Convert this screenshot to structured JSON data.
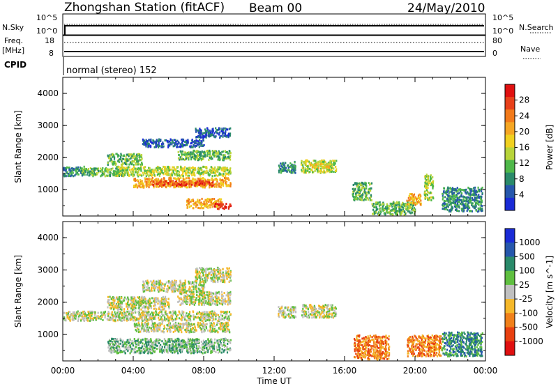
{
  "header": {
    "station": "Zhongshan Station (fitACF)",
    "beam": "Beam 00",
    "date": "24/May/2010"
  },
  "top_panels": {
    "nsky_label": "N.Sky",
    "nsearch_label": "N.Search",
    "left_top_tick": "10^5",
    "left_bottom_tick": "10^0",
    "right_top_tick": "10^5",
    "right_bottom_tick": "10^0",
    "freq_label": "Freq.",
    "freq_unit": "[MHz]",
    "freq_top": "18",
    "freq_bottom": "8",
    "nave_label": "Nave",
    "nave_top": "80",
    "nave_bottom": "0",
    "cpid_label": "CPID",
    "cpid_value": "normal (stereo) 152"
  },
  "chart_data": [
    {
      "type": "heatmap",
      "name": "power",
      "ylabel": "Slant Range [km]",
      "xlabel": "Time UT",
      "xlim": [
        0,
        24
      ],
      "ylim": [
        180,
        4500
      ],
      "x_ticks": [
        "00:00",
        "04:00",
        "08:00",
        "12:00",
        "16:00",
        "20:00",
        "00:00"
      ],
      "y_ticks": [
        1000,
        2000,
        3000,
        4000
      ],
      "colorbar": {
        "label": "Power [dB]",
        "ticks": [
          "4",
          "8",
          "12",
          "16",
          "20",
          "24",
          "28"
        ],
        "colors": [
          "#1a2bd6",
          "#2657ac",
          "#2a8a6a",
          "#4fb84a",
          "#b8d43a",
          "#f0d020",
          "#f5a623",
          "#f27a1a",
          "#e8401a",
          "#e01010"
        ]
      },
      "regions": [
        {
          "x": [
            0.0,
            1.2
          ],
          "y": [
            1450,
            1750
          ],
          "level": 2
        },
        {
          "x": [
            1.0,
            3.5
          ],
          "y": [
            1450,
            1700
          ],
          "level": 3
        },
        {
          "x": [
            2.5,
            4.5
          ],
          "y": [
            1800,
            2150
          ],
          "level": 3
        },
        {
          "x": [
            3.0,
            9.5
          ],
          "y": [
            1450,
            1750
          ],
          "level": 4
        },
        {
          "x": [
            4.0,
            9.5
          ],
          "y": [
            1100,
            1400
          ],
          "level": 6
        },
        {
          "x": [
            5.0,
            8.5
          ],
          "y": [
            1150,
            1300
          ],
          "level": 8
        },
        {
          "x": [
            6.5,
            9.5
          ],
          "y": [
            1950,
            2250
          ],
          "level": 3
        },
        {
          "x": [
            4.5,
            8.0
          ],
          "y": [
            2350,
            2600
          ],
          "level": 1
        },
        {
          "x": [
            7.5,
            9.5
          ],
          "y": [
            2650,
            2950
          ],
          "level": 1
        },
        {
          "x": [
            7.0,
            9.0
          ],
          "y": [
            450,
            750
          ],
          "level": 6
        },
        {
          "x": [
            8.5,
            9.5
          ],
          "y": [
            430,
            600
          ],
          "level": 9
        },
        {
          "x": [
            12.2,
            13.2
          ],
          "y": [
            1550,
            1900
          ],
          "level": 2
        },
        {
          "x": [
            13.5,
            15.5
          ],
          "y": [
            1550,
            1950
          ],
          "level": 4
        },
        {
          "x": [
            14.0,
            15.2
          ],
          "y": [
            1700,
            1850
          ],
          "level": 5
        },
        {
          "x": [
            16.4,
            17.5
          ],
          "y": [
            700,
            1250
          ],
          "level": 3
        },
        {
          "x": [
            17.5,
            20.0
          ],
          "y": [
            250,
            650
          ],
          "level": 3
        },
        {
          "x": [
            19.5,
            20.3
          ],
          "y": [
            550,
            900
          ],
          "level": 6
        },
        {
          "x": [
            20.5,
            21.0
          ],
          "y": [
            700,
            1500
          ],
          "level": 4
        },
        {
          "x": [
            21.5,
            23.8
          ],
          "y": [
            350,
            1100
          ],
          "level": 2
        }
      ]
    },
    {
      "type": "heatmap",
      "name": "velocity",
      "ylabel": "Slant Range [km]",
      "xlabel": "Time UT",
      "xlim": [
        0,
        24
      ],
      "ylim": [
        180,
        4500
      ],
      "x_ticks": [
        "00:00",
        "04:00",
        "08:00",
        "12:00",
        "16:00",
        "20:00",
        "00:00"
      ],
      "y_ticks": [
        1000,
        2000,
        3000,
        4000
      ],
      "colorbar": {
        "label": "Velocity [m s^-1]",
        "ticks": [
          "1000",
          "500",
          "100",
          "25",
          "-25",
          "-100",
          "-500",
          "-1000"
        ],
        "colors": [
          "#1a2bd6",
          "#2657ac",
          "#2a8a6a",
          "#5fbf40",
          "#c0c0c0",
          "#f5b82a",
          "#f0801a",
          "#e84010",
          "#e01010"
        ]
      },
      "regions": [
        {
          "x": [
            0.0,
            9.5
          ],
          "y": [
            1450,
            1750
          ],
          "level": 4
        },
        {
          "x": [
            2.5,
            6.0
          ],
          "y": [
            1800,
            2200
          ],
          "level": 4
        },
        {
          "x": [
            4.0,
            9.5
          ],
          "y": [
            1100,
            1400
          ],
          "level": 4
        },
        {
          "x": [
            6.5,
            9.5
          ],
          "y": [
            1950,
            2350
          ],
          "level": 4
        },
        {
          "x": [
            4.5,
            8.0
          ],
          "y": [
            2350,
            2700
          ],
          "level": 4
        },
        {
          "x": [
            7.5,
            9.5
          ],
          "y": [
            2650,
            3100
          ],
          "level": 4
        },
        {
          "x": [
            2.5,
            9.5
          ],
          "y": [
            450,
            900
          ],
          "level": 3
        },
        {
          "x": [
            12.2,
            13.2
          ],
          "y": [
            1550,
            1900
          ],
          "level": 4
        },
        {
          "x": [
            13.5,
            15.5
          ],
          "y": [
            1550,
            1950
          ],
          "level": 4
        },
        {
          "x": [
            16.5,
            18.5
          ],
          "y": [
            250,
            1000
          ],
          "level": 6
        },
        {
          "x": [
            19.5,
            21.5
          ],
          "y": [
            350,
            1000
          ],
          "level": 6
        },
        {
          "x": [
            21.5,
            23.8
          ],
          "y": [
            350,
            1100
          ],
          "level": 2
        }
      ]
    }
  ]
}
